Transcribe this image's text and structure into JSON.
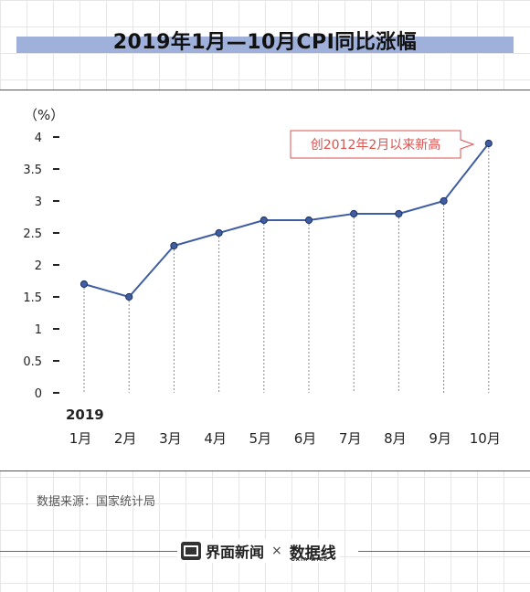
{
  "title": "2019年1月—10月CPI同比涨幅",
  "source": "数据来源：国家统计局",
  "footer": {
    "brand": "界面新闻",
    "separator": "×",
    "partner": "数据线",
    "partner_sub": "DATA WIRE"
  },
  "colors": {
    "line": "#3f5da3",
    "title_bar": "#9fb1db",
    "annotation": "#d9534f"
  },
  "chart_data": {
    "type": "line",
    "ylabel": "（%）",
    "year_label": "2019",
    "categories": [
      "1月",
      "2月",
      "3月",
      "4月",
      "5月",
      "6月",
      "7月",
      "8月",
      "9月",
      "10月"
    ],
    "values": [
      1.7,
      1.5,
      2.3,
      2.5,
      2.7,
      2.7,
      2.8,
      2.8,
      3.0,
      3.9
    ],
    "yticks": [
      "0",
      "0.5",
      "1",
      "1.5",
      "2",
      "2.5",
      "3",
      "3.5",
      "4"
    ],
    "ylim": [
      0,
      4
    ],
    "annotation": {
      "text": "创2012年2月以来新高",
      "target_index": 9
    },
    "grid": false
  }
}
